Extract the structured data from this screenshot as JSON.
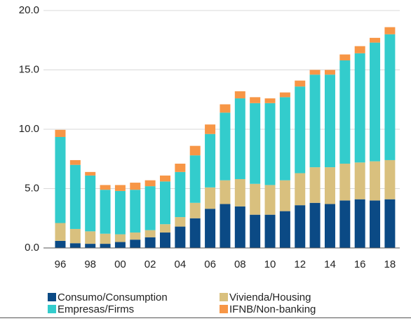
{
  "chart_data": {
    "type": "stacked_bar",
    "categories": [
      "96",
      null,
      "98",
      null,
      "00",
      null,
      "02",
      null,
      "04",
      null,
      "06",
      null,
      "08",
      null,
      "10",
      null,
      "12",
      null,
      "14",
      null,
      "16",
      null,
      "18"
    ],
    "series": [
      {
        "name": "Consumo/Consumption",
        "color": "#0b4a85",
        "values": [
          0.6,
          0.4,
          0.35,
          0.35,
          0.5,
          0.7,
          0.9,
          1.3,
          1.8,
          2.5,
          3.3,
          3.7,
          3.5,
          2.8,
          2.8,
          3.1,
          3.6,
          3.8,
          3.7,
          4.0,
          4.1,
          4.0,
          4.1
        ]
      },
      {
        "name": "Vivienda/Housing",
        "color": "#d9c07e",
        "values": [
          1.5,
          1.2,
          1.05,
          0.85,
          0.65,
          0.6,
          0.6,
          0.7,
          0.8,
          1.3,
          1.8,
          2.0,
          2.3,
          2.6,
          2.5,
          2.6,
          2.7,
          3.0,
          3.1,
          3.1,
          3.1,
          3.3,
          3.3
        ]
      },
      {
        "name": "Empresas/Firms",
        "color": "#33cccc",
        "values": [
          7.25,
          5.4,
          4.7,
          3.7,
          3.65,
          3.6,
          3.7,
          3.6,
          3.8,
          4.0,
          4.5,
          5.7,
          6.8,
          6.8,
          6.9,
          7.0,
          7.3,
          7.8,
          7.8,
          8.7,
          9.2,
          10.0,
          10.6
        ]
      },
      {
        "name": "IFNB/Non-banking",
        "color": "#f79646",
        "values": [
          0.6,
          0.4,
          0.3,
          0.4,
          0.5,
          0.6,
          0.5,
          0.5,
          0.7,
          0.8,
          0.8,
          0.7,
          0.6,
          0.5,
          0.4,
          0.4,
          0.5,
          0.4,
          0.4,
          0.5,
          0.6,
          0.4,
          0.6
        ]
      }
    ],
    "ylim": [
      0,
      20
    ],
    "yticks": [
      {
        "value": 0,
        "label": "0.0"
      },
      {
        "value": 5,
        "label": "5.0"
      },
      {
        "value": 10,
        "label": "10.0"
      },
      {
        "value": 15,
        "label": "15.0"
      },
      {
        "value": 20,
        "label": "20.0"
      }
    ],
    "grid": true
  }
}
